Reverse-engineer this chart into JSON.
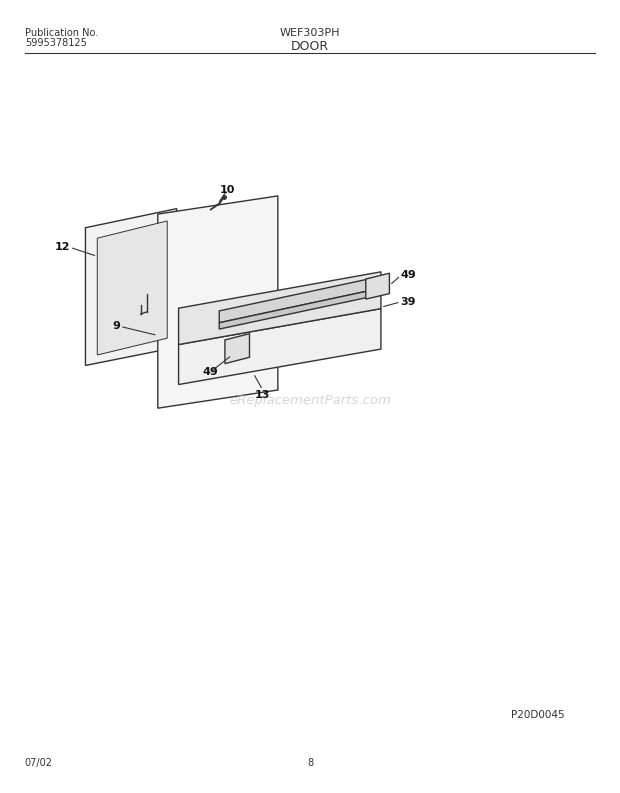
{
  "title_model": "WEF303PH",
  "title_section": "DOOR",
  "pub_no_label": "Publication No.",
  "pub_no": "5995378125",
  "diagram_id": "P20D0045",
  "date": "07/02",
  "page": "8",
  "watermark": "eReplacementParts.com",
  "bg_color": "#ffffff",
  "line_color": "#333333"
}
